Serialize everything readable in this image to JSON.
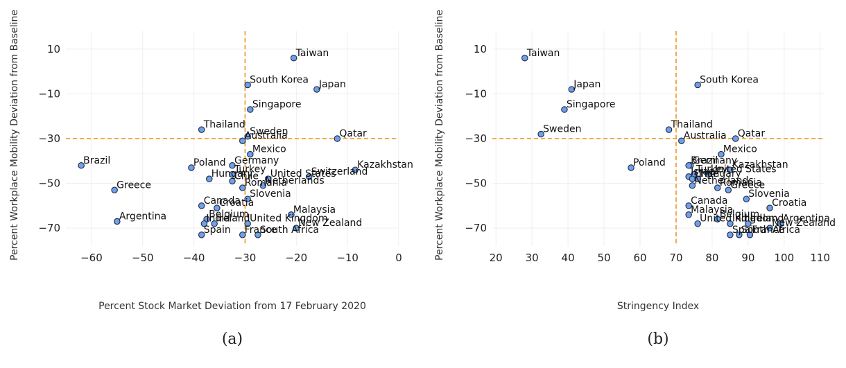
{
  "colors": {
    "marker_fill": "#6fa0e8",
    "marker_edge": "#1f2a44",
    "threshold_line": "#f0a030",
    "grid": "#eeeeee"
  },
  "chart_data": [
    {
      "type": "scatter",
      "caption": "(a)",
      "xlabel": "Percent Stock Market Deviation from 17 February 2020",
      "ylabel": "Percent Workplace Mobility Deviation from Baseline",
      "xlim": [
        -65,
        0
      ],
      "ylim": [
        -78,
        18
      ],
      "xticks": [
        -60,
        -50,
        -40,
        -30,
        -20,
        -10,
        0
      ],
      "yticks": [
        10,
        -10,
        -30,
        -50,
        -70
      ],
      "grid": true,
      "threshold_x": -30,
      "threshold_y": -30,
      "points": [
        {
          "label": "Taiwan",
          "x": -20.5,
          "y": 6
        },
        {
          "label": "South Korea",
          "x": -29.5,
          "y": -6
        },
        {
          "label": "Japan",
          "x": -16,
          "y": -8
        },
        {
          "label": "Singapore",
          "x": -29,
          "y": -17
        },
        {
          "label": "Thailand",
          "x": -38.5,
          "y": -26
        },
        {
          "label": "Sweden",
          "x": -29.5,
          "y": -29
        },
        {
          "label": "Australia",
          "x": -30.5,
          "y": -31
        },
        {
          "label": "Qatar",
          "x": -12,
          "y": -30
        },
        {
          "label": "Mexico",
          "x": -29,
          "y": -37
        },
        {
          "label": "Brazil",
          "x": -62,
          "y": -42
        },
        {
          "label": "Poland",
          "x": -40.5,
          "y": -43
        },
        {
          "label": "Germany",
          "x": -32.5,
          "y": -42
        },
        {
          "label": "Turkey",
          "x": -32.5,
          "y": -46
        },
        {
          "label": "United States",
          "x": -25.5,
          "y": -48
        },
        {
          "label": "Switzerland",
          "x": -17.5,
          "y": -47
        },
        {
          "label": "Kazakhstan",
          "x": -8.5,
          "y": -44
        },
        {
          "label": "Hungary",
          "x": -37,
          "y": -48
        },
        {
          "label": "Chile",
          "x": -32.5,
          "y": -49
        },
        {
          "label": "Netherlands",
          "x": -26.5,
          "y": -51
        },
        {
          "label": "Romania",
          "x": -30.5,
          "y": -52
        },
        {
          "label": "Greece",
          "x": -55.5,
          "y": -53
        },
        {
          "label": "Slovenia",
          "x": -29.5,
          "y": -57
        },
        {
          "label": "Canada",
          "x": -38.5,
          "y": -60
        },
        {
          "label": "Croatia",
          "x": -35.5,
          "y": -61
        },
        {
          "label": "Malaysia",
          "x": -21,
          "y": -64
        },
        {
          "label": "Belgium",
          "x": -37.5,
          "y": -66
        },
        {
          "label": "India",
          "x": -38,
          "y": -68
        },
        {
          "label": "Ireland",
          "x": -36,
          "y": -68
        },
        {
          "label": "United Kingdom",
          "x": -29.5,
          "y": -68
        },
        {
          "label": "New Zealand",
          "x": -20,
          "y": -70
        },
        {
          "label": "Argentina",
          "x": -55,
          "y": -67
        },
        {
          "label": "Spain",
          "x": -38.5,
          "y": -73
        },
        {
          "label": "France",
          "x": -30.5,
          "y": -73
        },
        {
          "label": "South Africa",
          "x": -27.5,
          "y": -73
        }
      ]
    },
    {
      "type": "scatter",
      "caption": "(b)",
      "xlabel": "Stringency Index",
      "ylabel": "Percent Workplace Mobility Deviation from Baseline",
      "xlim": [
        19,
        111
      ],
      "ylim": [
        -78,
        18
      ],
      "xticks": [
        20,
        30,
        40,
        50,
        60,
        70,
        80,
        90,
        100,
        110
      ],
      "yticks": [
        10,
        -10,
        -30,
        -50,
        -70
      ],
      "grid": true,
      "threshold_x": 70,
      "threshold_y": -30,
      "points": [
        {
          "label": "Taiwan",
          "x": 28,
          "y": 6
        },
        {
          "label": "Japan",
          "x": 41,
          "y": -8
        },
        {
          "label": "Singapore",
          "x": 39,
          "y": -17
        },
        {
          "label": "Sweden",
          "x": 32.5,
          "y": -28
        },
        {
          "label": "South Korea",
          "x": 76,
          "y": -6
        },
        {
          "label": "Thailand",
          "x": 68,
          "y": -26
        },
        {
          "label": "Australia",
          "x": 71.5,
          "y": -31
        },
        {
          "label": "Qatar",
          "x": 86.5,
          "y": -30
        },
        {
          "label": "Mexico",
          "x": 82.5,
          "y": -37
        },
        {
          "label": "Poland",
          "x": 57.5,
          "y": -43
        },
        {
          "label": "Germany",
          "x": 74,
          "y": -42
        },
        {
          "label": "Brazil",
          "x": 73.5,
          "y": -42
        },
        {
          "label": "Kazakhstan",
          "x": 85,
          "y": -44
        },
        {
          "label": "Israel",
          "x": 73.5,
          "y": -47
        },
        {
          "label": "Turkey",
          "x": 75,
          "y": -46
        },
        {
          "label": "United States",
          "x": 79,
          "y": -46
        },
        {
          "label": "Chile",
          "x": 74.5,
          "y": -48
        },
        {
          "label": "Hungary",
          "x": 76,
          "y": -48
        },
        {
          "label": "Netherlands",
          "x": 74.5,
          "y": -51
        },
        {
          "label": "Romania",
          "x": 81.5,
          "y": -52
        },
        {
          "label": "Greece",
          "x": 84.5,
          "y": -53
        },
        {
          "label": "Slovenia",
          "x": 89.5,
          "y": -57
        },
        {
          "label": "Canada",
          "x": 73.5,
          "y": -60
        },
        {
          "label": "Croatia",
          "x": 96,
          "y": -61
        },
        {
          "label": "Malaysia",
          "x": 73.5,
          "y": -64
        },
        {
          "label": "Belgium",
          "x": 81.5,
          "y": -66
        },
        {
          "label": "United Kingdom",
          "x": 76,
          "y": -68
        },
        {
          "label": "India",
          "x": 85,
          "y": -68
        },
        {
          "label": "Ireland",
          "x": 90,
          "y": -68
        },
        {
          "label": "Argentina",
          "x": 99,
          "y": -68
        },
        {
          "label": "New Zealand",
          "x": 96,
          "y": -70
        },
        {
          "label": "Spain",
          "x": 85,
          "y": -73
        },
        {
          "label": "South Africa",
          "x": 87.5,
          "y": -73
        },
        {
          "label": "France",
          "x": 90.5,
          "y": -73
        }
      ]
    }
  ]
}
